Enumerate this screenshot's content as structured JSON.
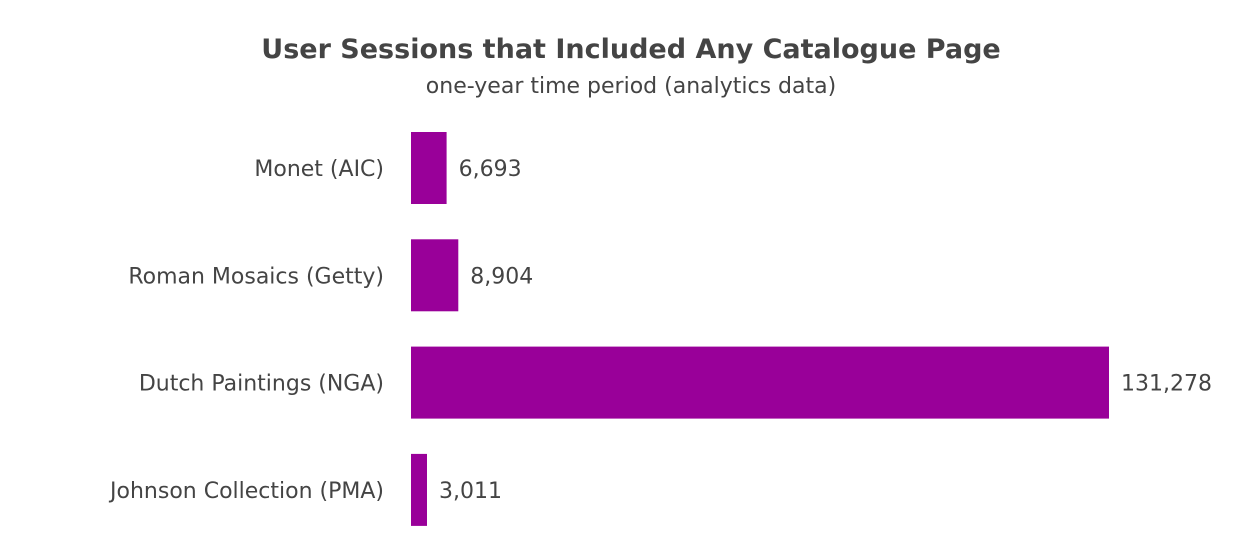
{
  "colors": {
    "bar": "#990099",
    "text": "#444444",
    "background": "#ffffff"
  },
  "chart_data": {
    "type": "bar",
    "orientation": "horizontal",
    "title": "User Sessions that Included Any Catalogue Page",
    "subtitle": "one-year time period (analytics data)",
    "categories": [
      "Monet (AIC)",
      "Roman Mosaics (Getty)",
      "Dutch Paintings (NGA)",
      "Johnson Collection (PMA)"
    ],
    "values": [
      6693,
      8904,
      131278,
      3011
    ],
    "value_labels": [
      "6,693",
      "8,904",
      "131,278",
      "3,011"
    ],
    "xlim": [
      0,
      131278
    ],
    "grid": false,
    "legend": "none"
  }
}
